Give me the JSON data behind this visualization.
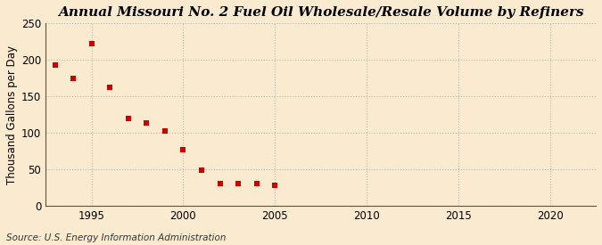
{
  "title": "Annual Missouri No. 2 Fuel Oil Wholesale/Resale Volume by Refiners",
  "ylabel": "Thousand Gallons per Day",
  "source": "Source: U.S. Energy Information Administration",
  "background_color": "#faebd0",
  "plot_background": "#faebd0",
  "years": [
    1993,
    1994,
    1995,
    1996,
    1997,
    1998,
    1999,
    2000,
    2001,
    2002,
    2003,
    2004,
    2005
  ],
  "values": [
    193,
    174,
    222,
    163,
    120,
    114,
    103,
    77,
    49,
    30,
    30,
    30,
    28
  ],
  "marker_color": "#cc0000",
  "xlim": [
    1992.5,
    2022.5
  ],
  "ylim": [
    0,
    250
  ],
  "yticks": [
    0,
    50,
    100,
    150,
    200,
    250
  ],
  "xticks": [
    1995,
    2000,
    2005,
    2010,
    2015,
    2020
  ],
  "title_fontsize": 11,
  "label_fontsize": 8.5,
  "tick_fontsize": 8.5,
  "source_fontsize": 7.5,
  "grid_color": "#a0a0a0",
  "grid_alpha": 0.7,
  "marker_size": 15
}
